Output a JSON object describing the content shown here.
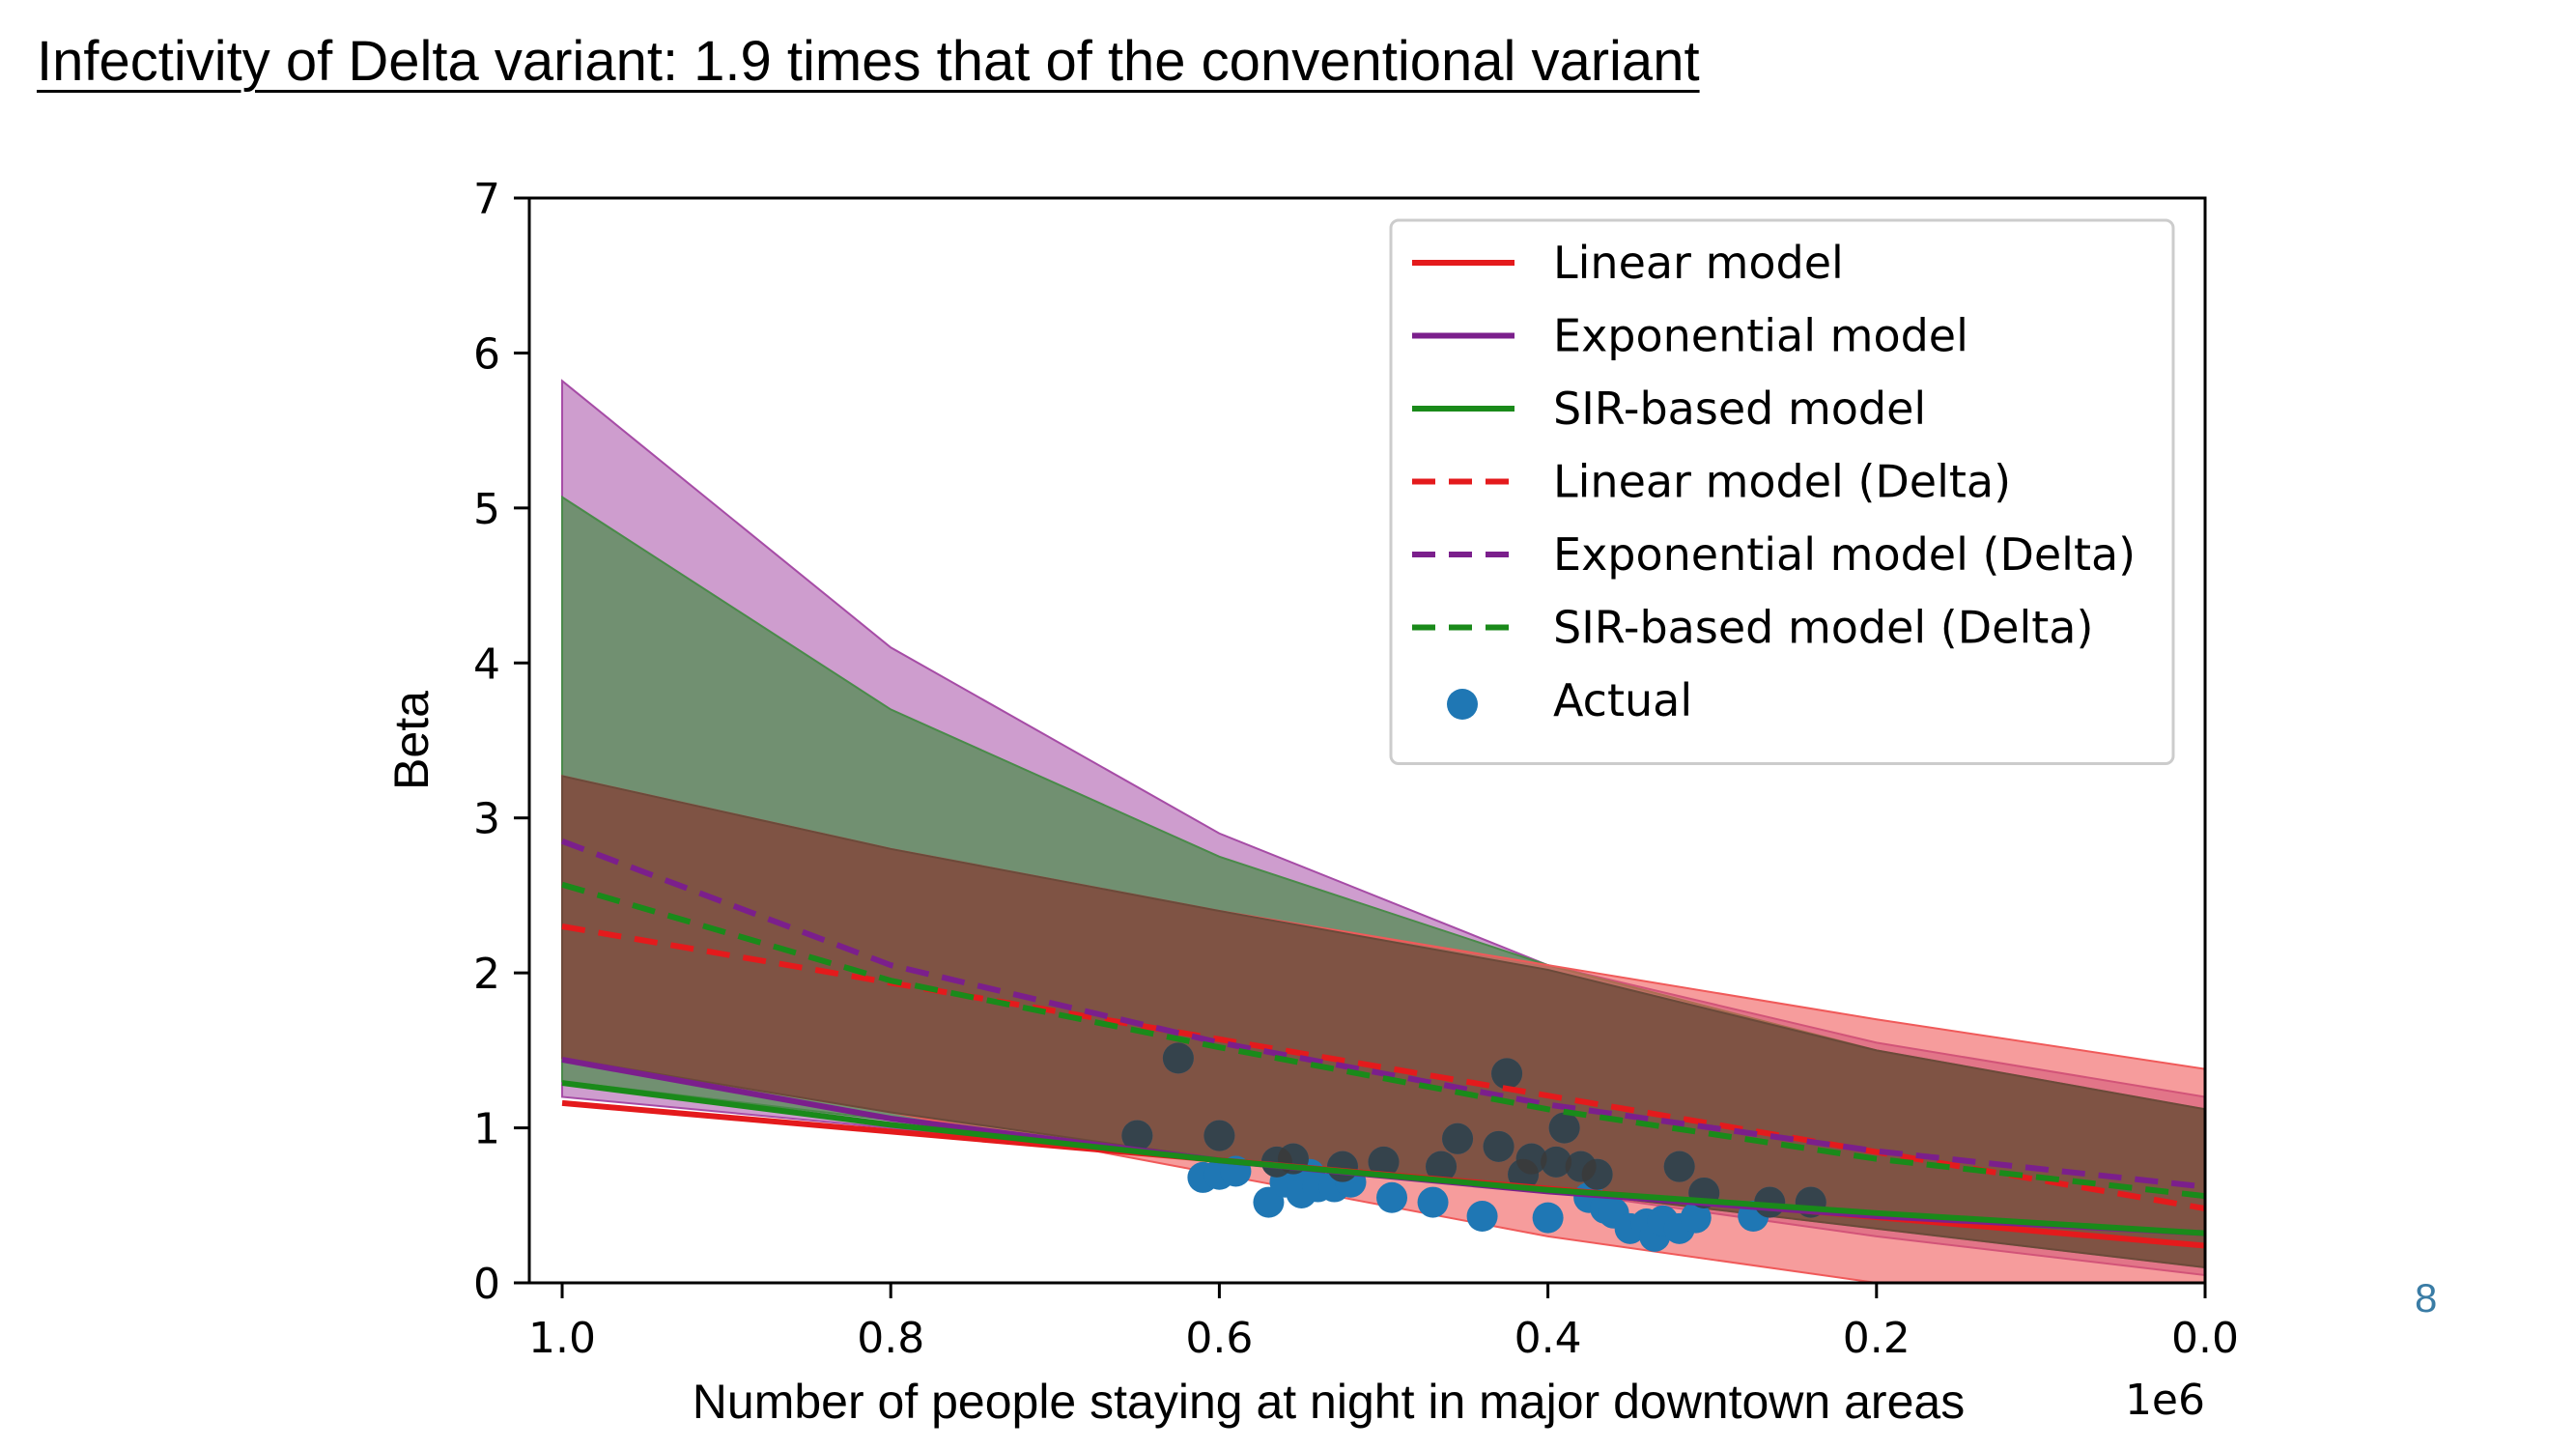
{
  "slide": {
    "title": "Infectivity of Delta variant: 1.9 times that of the conventional variant",
    "page_number": "8"
  },
  "chart_data": {
    "type": "line",
    "xlabel": "Number of people staying at night in major downtown areas",
    "ylabel": "Beta",
    "x_offset_text": "1e6",
    "xlim": [
      1.02,
      0.0
    ],
    "ylim": [
      0,
      7
    ],
    "x_inverted": true,
    "x_ticks": [
      1.0,
      0.8,
      0.6,
      0.4,
      0.2,
      0.0
    ],
    "x_tick_labels": [
      "1.0",
      "0.8",
      "0.6",
      "0.4",
      "0.2",
      "0.0"
    ],
    "y_ticks": [
      0,
      1,
      2,
      3,
      4,
      5,
      6,
      7
    ],
    "y_tick_labels": [
      "0",
      "1",
      "2",
      "3",
      "4",
      "5",
      "6",
      "7"
    ],
    "grid": false,
    "legend_position": "top-right",
    "bands": [
      {
        "series": "Exponential model",
        "color": "#a64ca6",
        "opacity": 0.55,
        "x": [
          1.0,
          0.8,
          0.6,
          0.4,
          0.2,
          0.0
        ],
        "lower": [
          1.2,
          1.0,
          0.8,
          0.6,
          0.3,
          0.05
        ],
        "upper": [
          5.82,
          4.1,
          2.9,
          2.05,
          1.55,
          1.2
        ]
      },
      {
        "series": "SIR-based model",
        "color": "#4a8a4a",
        "opacity": 0.7,
        "x": [
          1.0,
          0.8,
          0.6,
          0.4,
          0.2,
          0.0
        ],
        "lower": [
          1.3,
          1.05,
          0.8,
          0.6,
          0.35,
          0.1
        ],
        "upper": [
          5.07,
          3.7,
          2.75,
          2.05,
          1.5,
          1.12
        ]
      },
      {
        "series": "Linear model",
        "color": "#f05a5a",
        "opacity": 0.6,
        "x": [
          1.0,
          0.8,
          0.6,
          0.4,
          0.2,
          0.0
        ],
        "lower": [
          1.45,
          1.1,
          0.7,
          0.3,
          0.0,
          0.0
        ],
        "upper": [
          3.27,
          2.8,
          2.4,
          2.05,
          1.7,
          1.38
        ]
      },
      {
        "series": "Overlap",
        "color": "#6b4a3a",
        "opacity": 0.75,
        "x": [
          1.0,
          0.8,
          0.6,
          0.4,
          0.2,
          0.0
        ],
        "lower": [
          1.45,
          1.1,
          0.8,
          0.6,
          0.35,
          0.1
        ],
        "upper": [
          3.27,
          2.8,
          2.4,
          2.02,
          1.5,
          1.12
        ]
      }
    ],
    "series": [
      {
        "name": "Linear model",
        "color": "#e41a1c",
        "style": "solid",
        "x": [
          1.0,
          0.0
        ],
        "y": [
          1.16,
          0.24
        ]
      },
      {
        "name": "Exponential model",
        "color": "#7b1f8c",
        "style": "solid",
        "x": [
          1.0,
          0.8,
          0.6,
          0.4,
          0.2,
          0.0
        ],
        "y": [
          1.44,
          1.06,
          0.79,
          0.59,
          0.43,
          0.32
        ]
      },
      {
        "name": "SIR-based model",
        "color": "#1a8a1a",
        "style": "solid",
        "x": [
          1.0,
          0.8,
          0.6,
          0.4,
          0.2,
          0.0
        ],
        "y": [
          1.29,
          1.02,
          0.79,
          0.6,
          0.45,
          0.32
        ]
      },
      {
        "name": "Linear model (Delta)",
        "color": "#e41a1c",
        "style": "dashed",
        "x": [
          1.0,
          0.0
        ],
        "y": [
          2.3,
          0.48
        ]
      },
      {
        "name": "Exponential model (Delta)",
        "color": "#7b1f8c",
        "style": "dashed",
        "x": [
          1.0,
          0.8,
          0.6,
          0.4,
          0.2,
          0.0
        ],
        "y": [
          2.85,
          2.05,
          1.55,
          1.15,
          0.85,
          0.62
        ]
      },
      {
        "name": "SIR-based model (Delta)",
        "color": "#1a8a1a",
        "style": "dashed",
        "x": [
          1.0,
          0.8,
          0.6,
          0.4,
          0.2,
          0.0
        ],
        "y": [
          2.57,
          1.95,
          1.52,
          1.12,
          0.8,
          0.56
        ]
      }
    ],
    "scatter": {
      "name": "Actual",
      "color": "#1f77b4",
      "x": [
        0.65,
        0.625,
        0.61,
        0.6,
        0.6,
        0.59,
        0.57,
        0.565,
        0.56,
        0.555,
        0.55,
        0.545,
        0.54,
        0.53,
        0.525,
        0.52,
        0.5,
        0.495,
        0.47,
        0.465,
        0.455,
        0.44,
        0.43,
        0.425,
        0.415,
        0.41,
        0.4,
        0.395,
        0.39,
        0.38,
        0.375,
        0.37,
        0.365,
        0.36,
        0.35,
        0.34,
        0.335,
        0.33,
        0.32,
        0.32,
        0.31,
        0.305,
        0.275,
        0.265,
        0.24
      ],
      "y": [
        0.95,
        1.45,
        0.68,
        0.95,
        0.7,
        0.72,
        0.52,
        0.78,
        0.65,
        0.8,
        0.58,
        0.7,
        0.62,
        0.62,
        0.75,
        0.65,
        0.78,
        0.55,
        0.52,
        0.75,
        0.93,
        0.43,
        0.88,
        1.35,
        0.7,
        0.8,
        0.42,
        0.78,
        1.0,
        0.75,
        0.55,
        0.7,
        0.48,
        0.45,
        0.35,
        0.38,
        0.3,
        0.4,
        0.75,
        0.35,
        0.42,
        0.58,
        0.43,
        0.52,
        0.52
      ]
    },
    "legend": [
      "Linear model",
      "Exponential model",
      "SIR-based model",
      "Linear model (Delta)",
      "Exponential model (Delta)",
      "SIR-based model (Delta)",
      "Actual"
    ]
  }
}
